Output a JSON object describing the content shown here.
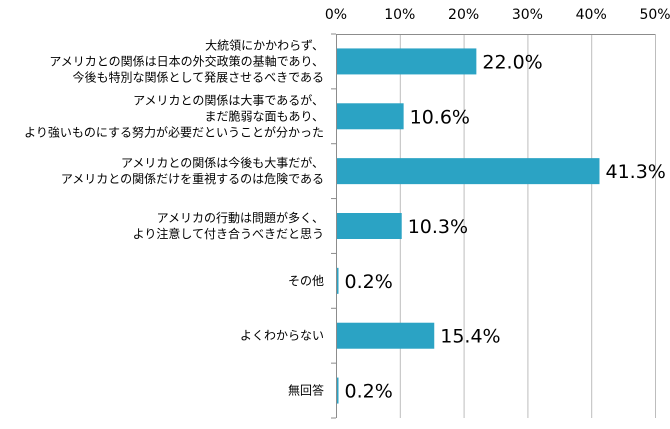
{
  "chart_data": {
    "type": "bar",
    "orientation": "horizontal",
    "title": "",
    "xlabel": "",
    "ylabel": "",
    "xlim": [
      0,
      50
    ],
    "x_ticks": [
      "0%",
      "10%",
      "20%",
      "30%",
      "40%",
      "50%"
    ],
    "x_tick_values": [
      0,
      10,
      20,
      30,
      40,
      50
    ],
    "x_ticks_position": "top",
    "grid": true,
    "legend": "none",
    "bar_color": "#2ba3c4",
    "categories": [
      [
        "大統領にかかわらず、",
        "アメリカとの関係は日本の外交政策の基軸であり、",
        "今後も特別な関係として発展させるべきである"
      ],
      [
        "アメリカとの関係は大事であるが、",
        "まだ脆弱な面もあり、",
        "より強いものにする努力が必要だということが分かった"
      ],
      [
        "アメリカとの関係は今後も大事だが、",
        "アメリカとの関係だけを重視するのは危険である"
      ],
      [
        "アメリカの行動は問題が多く、",
        "より注意して付き合うべきだと思う"
      ],
      [
        "その他"
      ],
      [
        "よくわからない"
      ],
      [
        "無回答"
      ]
    ],
    "values": [
      22.0,
      10.6,
      41.3,
      10.3,
      0.2,
      15.4,
      0.2
    ],
    "value_labels": [
      "22.0%",
      "10.6%",
      "41.3%",
      "10.3%",
      "0.2%",
      "15.4%",
      "0.2%"
    ]
  }
}
